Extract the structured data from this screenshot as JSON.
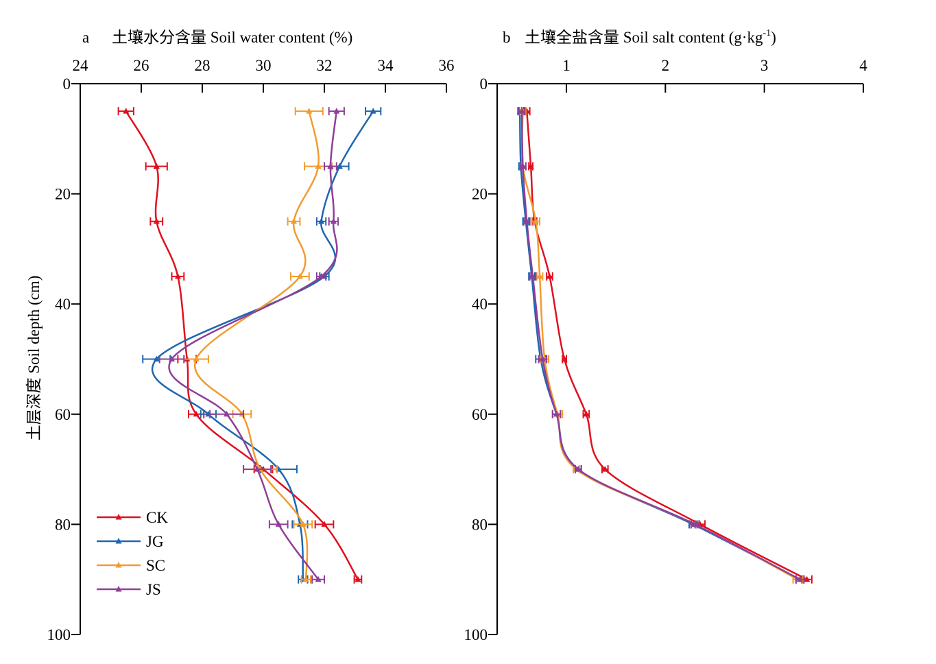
{
  "chart_data": [
    {
      "type": "line",
      "panel_letter": "a",
      "title": "土壤水分含量 Soil water content (%)",
      "xlabel": "",
      "ylabel": "土层深度 Soil depth (cm)",
      "xlim": [
        24,
        36
      ],
      "ylim": [
        0,
        100
      ],
      "x_ticks": [
        24,
        26,
        28,
        30,
        32,
        34,
        36
      ],
      "y_ticks": [
        0,
        20,
        40,
        60,
        80,
        100
      ],
      "x_axis_position": "top",
      "y_inverted": true,
      "legend": {
        "position": "bottom-left",
        "entries": [
          "CK",
          "JG",
          "SC",
          "JS"
        ]
      },
      "depths": [
        5,
        15,
        25,
        35,
        50,
        60,
        70,
        80,
        90
      ],
      "series": [
        {
          "name": "CK",
          "color": "#E0101E",
          "values": [
            25.5,
            26.5,
            26.5,
            27.2,
            27.5,
            27.8,
            30.0,
            32.0,
            33.1
          ],
          "errors": [
            0.25,
            0.35,
            0.2,
            0.2,
            0.3,
            0.25,
            0.3,
            0.3,
            0.12
          ]
        },
        {
          "name": "JG",
          "color": "#1F66B0",
          "values": [
            33.6,
            32.5,
            31.9,
            32.0,
            26.5,
            28.2,
            30.5,
            31.2,
            31.3
          ],
          "errors": [
            0.25,
            0.3,
            0.15,
            0.15,
            0.45,
            0.25,
            0.6,
            0.25,
            0.15
          ]
        },
        {
          "name": "SC",
          "color": "#F29B2E",
          "values": [
            31.5,
            31.8,
            31.0,
            31.2,
            27.8,
            29.3,
            29.9,
            31.3,
            31.4
          ],
          "errors": [
            0.45,
            0.45,
            0.2,
            0.3,
            0.4,
            0.3,
            0.55,
            0.3,
            0.15
          ]
        },
        {
          "name": "JS",
          "color": "#8E3F98",
          "values": [
            32.4,
            32.2,
            32.3,
            31.9,
            27.0,
            28.8,
            29.8,
            30.5,
            31.8
          ],
          "errors": [
            0.25,
            0.2,
            0.15,
            0.15,
            0.4,
            0.55,
            0.45,
            0.3,
            0.2
          ]
        }
      ]
    },
    {
      "type": "line",
      "panel_letter": "b",
      "title": "土壤全盐含量 Soil salt content (g·kg",
      "title_superscript": "-1",
      "title_suffix": ")",
      "xlabel": "",
      "ylabel": "",
      "xlim": [
        0.3,
        4
      ],
      "ylim": [
        0,
        100
      ],
      "x_ticks": [
        1,
        2,
        3,
        4
      ],
      "y_ticks": [
        0,
        20,
        40,
        60,
        80,
        100
      ],
      "x_axis_position": "top",
      "y_inverted": true,
      "depths": [
        5,
        15,
        25,
        35,
        50,
        60,
        70,
        80,
        90
      ],
      "series": [
        {
          "name": "CK",
          "color": "#E0101E",
          "values": [
            0.6,
            0.64,
            0.68,
            0.83,
            0.98,
            1.2,
            1.39,
            2.35,
            3.43
          ],
          "errors": [
            0.03,
            0.02,
            0.02,
            0.03,
            0.02,
            0.03,
            0.03,
            0.05,
            0.05
          ]
        },
        {
          "name": "JG",
          "color": "#1F66B0",
          "values": [
            0.53,
            0.54,
            0.59,
            0.65,
            0.74,
            0.9,
            1.12,
            2.28,
            3.36
          ],
          "errors": [
            0.02,
            0.02,
            0.03,
            0.03,
            0.05,
            0.04,
            0.03,
            0.04,
            0.04
          ]
        },
        {
          "name": "SC",
          "color": "#F29B2E",
          "values": [
            0.56,
            0.56,
            0.69,
            0.73,
            0.78,
            0.91,
            1.1,
            2.3,
            3.34
          ],
          "errors": [
            0.03,
            0.03,
            0.04,
            0.03,
            0.04,
            0.05,
            0.03,
            0.04,
            0.05
          ]
        },
        {
          "name": "JS",
          "color": "#8E3F98",
          "values": [
            0.55,
            0.56,
            0.6,
            0.66,
            0.76,
            0.9,
            1.12,
            2.3,
            3.36
          ],
          "errors": [
            0.03,
            0.03,
            0.03,
            0.03,
            0.04,
            0.04,
            0.03,
            0.04,
            0.04
          ]
        }
      ]
    }
  ]
}
